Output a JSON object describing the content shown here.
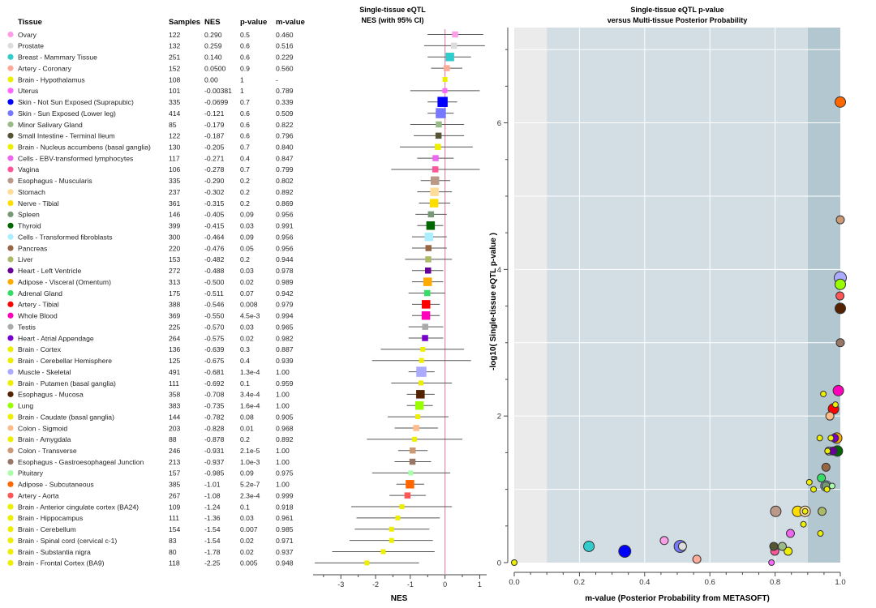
{
  "table": {
    "headers": [
      "Tissue",
      "Samples",
      "NES",
      "p-value",
      "m-value"
    ]
  },
  "tissues": [
    {
      "name": "Ovary",
      "samples": "122",
      "nes": "0.290",
      "p": "0.5",
      "m": "0.460",
      "color": "#ff9ee8",
      "ci": [
        -0.5,
        1.1
      ],
      "size": 1
    },
    {
      "name": "Prostate",
      "samples": "132",
      "nes": "0.259",
      "p": "0.6",
      "m": "0.516",
      "color": "#dddddd",
      "ci": [
        -0.6,
        1.15
      ],
      "size": 1
    },
    {
      "name": "Breast - Mammary Tissue",
      "samples": "251",
      "nes": "0.140",
      "p": "0.6",
      "m": "0.229",
      "color": "#33cccc",
      "ci": [
        -0.5,
        0.75
      ],
      "size": 2
    },
    {
      "name": "Artery - Coronary",
      "samples": "152",
      "nes": "0.0500",
      "p": "0.9",
      "m": "0.560",
      "color": "#ffaa99",
      "ci": [
        -0.4,
        0.5
      ],
      "size": 1
    },
    {
      "name": "Brain - Hypothalamus",
      "samples": "108",
      "nes": "0.00",
      "p": "1",
      "m": "-",
      "color": "#eeee00",
      "ci": [
        0,
        0
      ],
      "size": 0
    },
    {
      "name": "Uterus",
      "samples": "101",
      "nes": "-0.00381",
      "p": "1",
      "m": "0.789",
      "color": "#ff66ff",
      "ci": [
        -1.0,
        1.0
      ],
      "size": 0
    },
    {
      "name": "Skin - Not Sun Exposed (Suprapubic)",
      "samples": "335",
      "nes": "-0.0699",
      "p": "0.7",
      "m": "0.339",
      "color": "#0000ff",
      "ci": [
        -0.5,
        0.35
      ],
      "size": 3
    },
    {
      "name": "Skin - Sun Exposed (Lower leg)",
      "samples": "414",
      "nes": "-0.121",
      "p": "0.6",
      "m": "0.509",
      "color": "#7777ff",
      "ci": [
        -0.5,
        0.25
      ],
      "size": 3
    },
    {
      "name": "Minor Salivary Gland",
      "samples": "85",
      "nes": "-0.179",
      "p": "0.6",
      "m": "0.822",
      "color": "#99bb88",
      "ci": [
        -1.0,
        0.55
      ],
      "size": 1
    },
    {
      "name": "Small Intestine - Terminal Ileum",
      "samples": "122",
      "nes": "-0.187",
      "p": "0.6",
      "m": "0.796",
      "color": "#555533",
      "ci": [
        -0.9,
        0.55
      ],
      "size": 1
    },
    {
      "name": "Brain - Nucleus accumbens (basal ganglia)",
      "samples": "130",
      "nes": "-0.205",
      "p": "0.7",
      "m": "0.840",
      "color": "#eeee00",
      "ci": [
        -1.3,
        0.8
      ],
      "size": 1
    },
    {
      "name": "Cells - EBV-transformed lymphocytes",
      "samples": "117",
      "nes": "-0.271",
      "p": "0.4",
      "m": "0.847",
      "color": "#ee66ee",
      "ci": [
        -0.8,
        0.25
      ],
      "size": 1
    },
    {
      "name": "Vagina",
      "samples": "106",
      "nes": "-0.278",
      "p": "0.7",
      "m": "0.799",
      "color": "#ff5599",
      "ci": [
        -1.55,
        1.0
      ],
      "size": 1
    },
    {
      "name": "Esophagus - Muscularis",
      "samples": "335",
      "nes": "-0.290",
      "p": "0.2",
      "m": "0.802",
      "color": "#bb9988",
      "ci": [
        -0.7,
        0.15
      ],
      "size": 2
    },
    {
      "name": "Stomach",
      "samples": "237",
      "nes": "-0.302",
      "p": "0.2",
      "m": "0.892",
      "color": "#ffdd99",
      "ci": [
        -0.8,
        0.2
      ],
      "size": 2
    },
    {
      "name": "Nerve - Tibial",
      "samples": "361",
      "nes": "-0.315",
      "p": "0.2",
      "m": "0.869",
      "color": "#ffdd00",
      "ci": [
        -0.75,
        0.15
      ],
      "size": 2
    },
    {
      "name": "Spleen",
      "samples": "146",
      "nes": "-0.405",
      "p": "0.09",
      "m": "0.956",
      "color": "#779977",
      "ci": [
        -0.85,
        0.05
      ],
      "size": 1
    },
    {
      "name": "Thyroid",
      "samples": "399",
      "nes": "-0.415",
      "p": "0.03",
      "m": "0.991",
      "color": "#006600",
      "ci": [
        -0.8,
        -0.05
      ],
      "size": 2
    },
    {
      "name": "Cells - Transformed fibroblasts",
      "samples": "300",
      "nes": "-0.464",
      "p": "0.09",
      "m": "0.956",
      "color": "#aaeeff",
      "ci": [
        -0.95,
        0.05
      ],
      "size": 2
    },
    {
      "name": "Pancreas",
      "samples": "220",
      "nes": "-0.476",
      "p": "0.05",
      "m": "0.956",
      "color": "#996644",
      "ci": [
        -0.95,
        0.05
      ],
      "size": 1
    },
    {
      "name": "Liver",
      "samples": "153",
      "nes": "-0.482",
      "p": "0.2",
      "m": "0.944",
      "color": "#aabb66",
      "ci": [
        -1.15,
        0.2
      ],
      "size": 1
    },
    {
      "name": "Heart - Left Ventricle",
      "samples": "272",
      "nes": "-0.488",
      "p": "0.03",
      "m": "0.978",
      "color": "#660099",
      "ci": [
        -0.95,
        -0.05
      ],
      "size": 1
    },
    {
      "name": "Adipose - Visceral (Omentum)",
      "samples": "313",
      "nes": "-0.500",
      "p": "0.02",
      "m": "0.989",
      "color": "#ffaa00",
      "ci": [
        -0.95,
        -0.05
      ],
      "size": 2
    },
    {
      "name": "Adrenal Gland",
      "samples": "175",
      "nes": "-0.511",
      "p": "0.07",
      "m": "0.942",
      "color": "#33dd66",
      "ci": [
        -1.05,
        0.0
      ],
      "size": 1
    },
    {
      "name": "Artery - Tibial",
      "samples": "388",
      "nes": "-0.546",
      "p": "0.008",
      "m": "0.979",
      "color": "#ff0000",
      "ci": [
        -0.95,
        -0.15
      ],
      "size": 2
    },
    {
      "name": "Whole Blood",
      "samples": "369",
      "nes": "-0.550",
      "p": "4.5e-3",
      "m": "0.994",
      "color": "#ff00bb",
      "ci": [
        -0.95,
        -0.15
      ],
      "size": 2
    },
    {
      "name": "Testis",
      "samples": "225",
      "nes": "-0.570",
      "p": "0.03",
      "m": "0.965",
      "color": "#aaaaaa",
      "ci": [
        -1.05,
        -0.05
      ],
      "size": 1
    },
    {
      "name": "Heart - Atrial Appendage",
      "samples": "264",
      "nes": "-0.575",
      "p": "0.02",
      "m": "0.982",
      "color": "#7700cc",
      "ci": [
        -1.05,
        -0.05
      ],
      "size": 1
    },
    {
      "name": "Brain - Cortex",
      "samples": "136",
      "nes": "-0.639",
      "p": "0.3",
      "m": "0.887",
      "color": "#eeee00",
      "ci": [
        -1.85,
        0.55
      ],
      "size": 0
    },
    {
      "name": "Brain - Cerebellar Hemisphere",
      "samples": "125",
      "nes": "-0.675",
      "p": "0.4",
      "m": "0.939",
      "color": "#eeee00",
      "ci": [
        -2.1,
        0.75
      ],
      "size": 0
    },
    {
      "name": "Muscle - Skeletal",
      "samples": "491",
      "nes": "-0.681",
      "p": "1.3e-4",
      "m": "1.00",
      "color": "#aaaaff",
      "ci": [
        -1.05,
        -0.3
      ],
      "size": 3
    },
    {
      "name": "Brain - Putamen (basal ganglia)",
      "samples": "111",
      "nes": "-0.692",
      "p": "0.1",
      "m": "0.959",
      "color": "#eeee00",
      "ci": [
        -1.55,
        0.2
      ],
      "size": 0
    },
    {
      "name": "Esophagus - Mucosa",
      "samples": "358",
      "nes": "-0.708",
      "p": "3.4e-4",
      "m": "1.00",
      "color": "#552200",
      "ci": [
        -1.1,
        -0.3
      ],
      "size": 2
    },
    {
      "name": "Lung",
      "samples": "383",
      "nes": "-0.735",
      "p": "1.6e-4",
      "m": "1.00",
      "color": "#99ff00",
      "ci": [
        -1.1,
        -0.35
      ],
      "size": 2
    },
    {
      "name": "Brain - Caudate (basal ganglia)",
      "samples": "144",
      "nes": "-0.782",
      "p": "0.08",
      "m": "0.905",
      "color": "#eeee00",
      "ci": [
        -1.65,
        0.1
      ],
      "size": 0
    },
    {
      "name": "Colon - Sigmoid",
      "samples": "203",
      "nes": "-0.828",
      "p": "0.01",
      "m": "0.968",
      "color": "#ffbb88",
      "ci": [
        -1.45,
        -0.2
      ],
      "size": 1
    },
    {
      "name": "Brain - Amygdala",
      "samples": "88",
      "nes": "-0.878",
      "p": "0.2",
      "m": "0.892",
      "color": "#eeee00",
      "ci": [
        -2.25,
        0.5
      ],
      "size": 0
    },
    {
      "name": "Colon - Transverse",
      "samples": "246",
      "nes": "-0.931",
      "p": "2.1e-5",
      "m": "1.00",
      "color": "#cc9977",
      "ci": [
        -1.35,
        -0.5
      ],
      "size": 1
    },
    {
      "name": "Esophagus - Gastroesophageal Junction",
      "samples": "213",
      "nes": "-0.937",
      "p": "1.0e-3",
      "m": "1.00",
      "color": "#997766",
      "ci": [
        -1.45,
        -0.4
      ],
      "size": 1
    },
    {
      "name": "Pituitary",
      "samples": "157",
      "nes": "-0.985",
      "p": "0.09",
      "m": "0.975",
      "color": "#aaffaa",
      "ci": [
        -2.1,
        0.15
      ],
      "size": 0
    },
    {
      "name": "Adipose - Subcutaneous",
      "samples": "385",
      "nes": "-1.01",
      "p": "5.2e-7",
      "m": "1.00",
      "color": "#ff6600",
      "ci": [
        -1.4,
        -0.6
      ],
      "size": 2
    },
    {
      "name": "Artery - Aorta",
      "samples": "267",
      "nes": "-1.08",
      "p": "2.3e-4",
      "m": "0.999",
      "color": "#ff5555",
      "ci": [
        -1.6,
        -0.55
      ],
      "size": 1
    },
    {
      "name": "Brain - Anterior cingulate cortex (BA24)",
      "samples": "109",
      "nes": "-1.24",
      "p": "0.1",
      "m": "0.918",
      "color": "#eeee00",
      "ci": [
        -2.7,
        0.2
      ],
      "size": 0
    },
    {
      "name": "Brain - Hippocampus",
      "samples": "111",
      "nes": "-1.36",
      "p": "0.03",
      "m": "0.961",
      "color": "#eeee00",
      "ci": [
        -2.55,
        -0.15
      ],
      "size": 0
    },
    {
      "name": "Brain - Cerebellum",
      "samples": "154",
      "nes": "-1.54",
      "p": "0.007",
      "m": "0.985",
      "color": "#eeee00",
      "ci": [
        -2.6,
        -0.45
      ],
      "size": 0
    },
    {
      "name": "Brain - Spinal cord (cervical c-1)",
      "samples": "83",
      "nes": "-1.54",
      "p": "0.02",
      "m": "0.971",
      "color": "#eeee00",
      "ci": [
        -2.75,
        -0.35
      ],
      "size": 0
    },
    {
      "name": "Brain - Substantia nigra",
      "samples": "80",
      "nes": "-1.78",
      "p": "0.02",
      "m": "0.937",
      "color": "#eeee00",
      "ci": [
        -3.25,
        -0.3
      ],
      "size": 0
    },
    {
      "name": "Brain - Frontal Cortex (BA9)",
      "samples": "118",
      "nes": "-2.25",
      "p": "0.005",
      "m": "0.948",
      "color": "#eeee00",
      "ci": [
        -3.75,
        -0.75
      ],
      "size": 0
    }
  ],
  "chart_data": [
    {
      "type": "forest",
      "title": "Single-tissue eQTL",
      "subtitle": "NES (with 95% CI)",
      "xlabel": "NES",
      "xlim": [
        -3.8,
        1.2
      ],
      "ticks": [
        "-3",
        "-2",
        "-1",
        "0",
        "1"
      ],
      "tick_values": [
        -3,
        -2,
        -1,
        0,
        1
      ],
      "reference_line": 0
    },
    {
      "type": "scatter",
      "title": "Single-tissue eQTL p-value",
      "subtitle": "versus Multi-tissue Posterior Probability",
      "xlabel": "m-value (Posterior Probability from METASOFT)",
      "ylabel": "-log10( Single-tissue eQTL p-value )",
      "xlim": [
        0,
        1
      ],
      "ylim": [
        0,
        7.3
      ],
      "x_ticks": [
        "0.0",
        "0.2",
        "0.4",
        "0.6",
        "0.8",
        "1.0"
      ],
      "x_tick_values": [
        0,
        0.2,
        0.4,
        0.6,
        0.8,
        1.0
      ],
      "y_ticks": [
        "0",
        "2",
        "4",
        "6"
      ],
      "y_tick_values": [
        0,
        2,
        4,
        6
      ],
      "regions": [
        {
          "from": 0,
          "to": 0.1,
          "color": "#ebebeb"
        },
        {
          "from": 0.1,
          "to": 0.9,
          "color": "#d2dee4"
        },
        {
          "from": 0.9,
          "to": 1.0,
          "color": "#b3c7d0"
        }
      ]
    }
  ]
}
